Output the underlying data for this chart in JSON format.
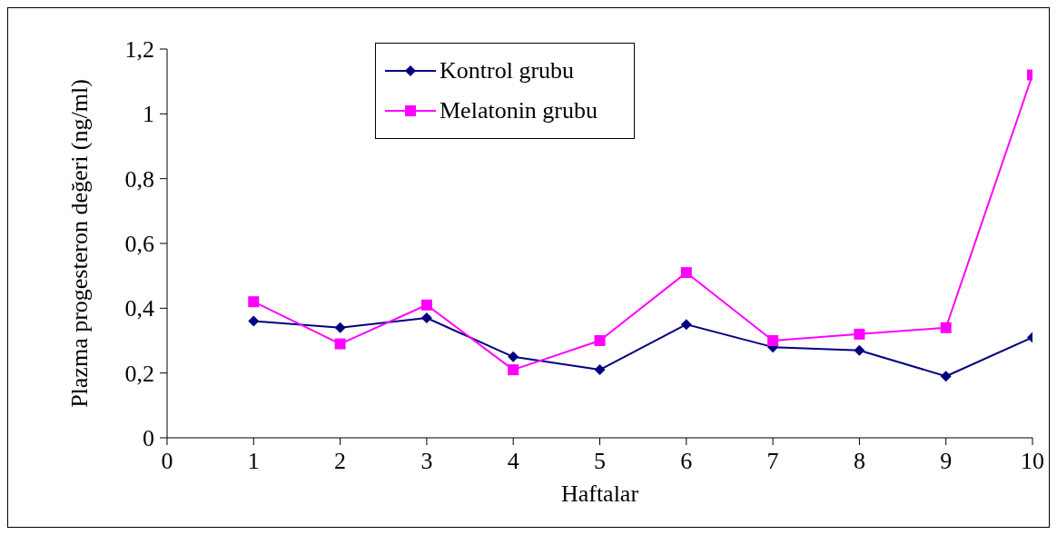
{
  "chart_data": {
    "type": "line",
    "xlabel": "Haftalar",
    "ylabel": "Plazma progesteron değeri (ng/ml)",
    "x": [
      1,
      2,
      3,
      4,
      5,
      6,
      7,
      8,
      9,
      10
    ],
    "series": [
      {
        "name": "Kontrol grubu",
        "color": "#000080",
        "marker": "diamond",
        "values": [
          0.36,
          0.34,
          0.37,
          0.25,
          0.21,
          0.35,
          0.28,
          0.27,
          0.19,
          0.31
        ]
      },
      {
        "name": "Melatonin grubu",
        "color": "#ff00ff",
        "marker": "square",
        "values": [
          0.42,
          0.29,
          0.41,
          0.21,
          0.3,
          0.51,
          0.3,
          0.32,
          0.34,
          1.12
        ]
      }
    ],
    "xlim": [
      0,
      10
    ],
    "xticks": [
      0,
      1,
      2,
      3,
      4,
      5,
      6,
      7,
      8,
      9,
      10
    ],
    "ylim": [
      0,
      1.2
    ],
    "yticks": [
      0,
      {
        "value": 0.2,
        "label": "0,2"
      },
      {
        "value": 0.4,
        "label": "0,4"
      },
      {
        "value": 0.6,
        "label": "0,6"
      },
      {
        "value": 0.8,
        "label": "0,8"
      },
      1,
      {
        "value": 1.2,
        "label": "1,2"
      }
    ],
    "grid": false,
    "legend": "top",
    "line_style": "solid"
  }
}
